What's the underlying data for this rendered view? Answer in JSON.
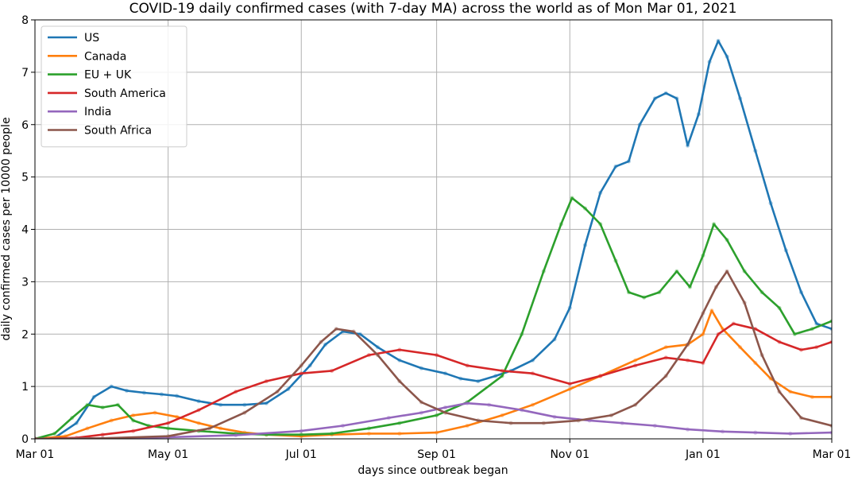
{
  "chart_data": {
    "type": "line",
    "title": "COVID-19 daily confirmed cases (with 7-day MA) across the world as of Mon Mar 01, 2021",
    "xlabel": "days since outbreak began",
    "ylabel": "daily confirmed cases per 10000 people",
    "x_ticks": [
      "Mar 01",
      "May 01",
      "Jul 01",
      "Sep 01",
      "Nov 01",
      "Jan 01",
      "Mar 01"
    ],
    "x_tick_dates": [
      "2020-03-01",
      "2020-05-01",
      "2020-07-01",
      "2020-09-01",
      "2020-11-01",
      "2021-01-01",
      "2021-03-01"
    ],
    "xlim": [
      "2020-03-01",
      "2021-03-01"
    ],
    "ylim": [
      0,
      8
    ],
    "y_ticks": [
      0,
      1,
      2,
      3,
      4,
      5,
      6,
      7,
      8
    ],
    "grid": true,
    "legend_position": "top-left",
    "series": [
      {
        "name": "US",
        "color": "#1f77b4",
        "dates": [
          "2020-03-01",
          "2020-03-10",
          "2020-03-20",
          "2020-03-28",
          "2020-04-05",
          "2020-04-12",
          "2020-04-20",
          "2020-04-28",
          "2020-05-05",
          "2020-05-15",
          "2020-05-25",
          "2020-06-05",
          "2020-06-15",
          "2020-06-25",
          "2020-07-05",
          "2020-07-12",
          "2020-07-20",
          "2020-07-28",
          "2020-08-05",
          "2020-08-15",
          "2020-08-25",
          "2020-09-05",
          "2020-09-12",
          "2020-09-20",
          "2020-09-28",
          "2020-10-05",
          "2020-10-15",
          "2020-10-25",
          "2020-11-01",
          "2020-11-08",
          "2020-11-15",
          "2020-11-22",
          "2020-11-28",
          "2020-12-03",
          "2020-12-10",
          "2020-12-15",
          "2020-12-20",
          "2020-12-25",
          "2020-12-30",
          "2021-01-04",
          "2021-01-08",
          "2021-01-12",
          "2021-01-18",
          "2021-01-25",
          "2021-02-01",
          "2021-02-08",
          "2021-02-15",
          "2021-02-22",
          "2021-03-01"
        ],
        "values": [
          0.0,
          0.02,
          0.3,
          0.8,
          1.0,
          0.92,
          0.88,
          0.85,
          0.82,
          0.72,
          0.65,
          0.65,
          0.68,
          0.95,
          1.4,
          1.8,
          2.05,
          2.0,
          1.75,
          1.5,
          1.35,
          1.25,
          1.15,
          1.1,
          1.2,
          1.3,
          1.5,
          1.9,
          2.5,
          3.7,
          4.7,
          5.2,
          5.3,
          6.0,
          6.5,
          6.6,
          6.5,
          5.6,
          6.2,
          7.2,
          7.6,
          7.3,
          6.5,
          5.5,
          4.5,
          3.6,
          2.8,
          2.2,
          2.1
        ]
      },
      {
        "name": "Canada",
        "color": "#ff7f0e",
        "dates": [
          "2020-03-01",
          "2020-03-15",
          "2020-03-25",
          "2020-04-05",
          "2020-04-15",
          "2020-04-25",
          "2020-05-05",
          "2020-05-15",
          "2020-05-25",
          "2020-06-05",
          "2020-06-15",
          "2020-07-01",
          "2020-07-15",
          "2020-08-01",
          "2020-08-15",
          "2020-09-01",
          "2020-09-15",
          "2020-10-01",
          "2020-10-15",
          "2020-11-01",
          "2020-11-15",
          "2020-12-01",
          "2020-12-15",
          "2020-12-25",
          "2021-01-01",
          "2021-01-05",
          "2021-01-10",
          "2021-01-18",
          "2021-01-25",
          "2021-02-01",
          "2021-02-10",
          "2021-02-20",
          "2021-03-01"
        ],
        "values": [
          0.0,
          0.05,
          0.2,
          0.35,
          0.45,
          0.5,
          0.42,
          0.3,
          0.2,
          0.12,
          0.08,
          0.05,
          0.08,
          0.1,
          0.1,
          0.12,
          0.25,
          0.45,
          0.65,
          0.95,
          1.2,
          1.5,
          1.75,
          1.8,
          2.0,
          2.45,
          2.1,
          1.75,
          1.45,
          1.15,
          0.9,
          0.8,
          0.8
        ]
      },
      {
        "name": "EU + UK",
        "color": "#2ca02c",
        "dates": [
          "2020-03-01",
          "2020-03-10",
          "2020-03-18",
          "2020-03-25",
          "2020-04-01",
          "2020-04-08",
          "2020-04-15",
          "2020-04-22",
          "2020-05-01",
          "2020-05-15",
          "2020-06-01",
          "2020-06-15",
          "2020-07-01",
          "2020-07-15",
          "2020-08-01",
          "2020-08-15",
          "2020-09-01",
          "2020-09-15",
          "2020-10-01",
          "2020-10-10",
          "2020-10-20",
          "2020-10-28",
          "2020-11-02",
          "2020-11-08",
          "2020-11-15",
          "2020-11-22",
          "2020-11-28",
          "2020-12-05",
          "2020-12-12",
          "2020-12-20",
          "2020-12-26",
          "2021-01-01",
          "2021-01-06",
          "2021-01-12",
          "2021-01-20",
          "2021-01-28",
          "2021-02-05",
          "2021-02-12",
          "2021-02-20",
          "2021-03-01"
        ],
        "values": [
          0.0,
          0.1,
          0.4,
          0.65,
          0.6,
          0.65,
          0.35,
          0.25,
          0.2,
          0.15,
          0.1,
          0.08,
          0.08,
          0.1,
          0.2,
          0.3,
          0.45,
          0.7,
          1.2,
          2.0,
          3.2,
          4.1,
          4.6,
          4.4,
          4.1,
          3.4,
          2.8,
          2.7,
          2.8,
          3.2,
          2.9,
          3.5,
          4.1,
          3.8,
          3.2,
          2.8,
          2.5,
          2.0,
          2.1,
          2.25
        ]
      },
      {
        "name": "South America",
        "color": "#d62728",
        "dates": [
          "2020-03-01",
          "2020-03-20",
          "2020-04-01",
          "2020-04-15",
          "2020-05-01",
          "2020-05-15",
          "2020-06-01",
          "2020-06-15",
          "2020-07-01",
          "2020-07-15",
          "2020-08-01",
          "2020-08-15",
          "2020-09-01",
          "2020-09-15",
          "2020-10-01",
          "2020-10-15",
          "2020-11-01",
          "2020-11-15",
          "2020-12-01",
          "2020-12-15",
          "2020-12-25",
          "2021-01-01",
          "2021-01-08",
          "2021-01-15",
          "2021-01-25",
          "2021-02-05",
          "2021-02-15",
          "2021-02-22",
          "2021-03-01"
        ],
        "values": [
          0.0,
          0.02,
          0.08,
          0.15,
          0.3,
          0.55,
          0.9,
          1.1,
          1.25,
          1.3,
          1.6,
          1.7,
          1.6,
          1.4,
          1.3,
          1.25,
          1.05,
          1.2,
          1.4,
          1.55,
          1.5,
          1.45,
          2.0,
          2.2,
          2.1,
          1.85,
          1.7,
          1.75,
          1.85
        ]
      },
      {
        "name": "India",
        "color": "#9467bd",
        "dates": [
          "2020-03-01",
          "2020-04-01",
          "2020-05-01",
          "2020-06-01",
          "2020-07-01",
          "2020-07-20",
          "2020-08-10",
          "2020-08-25",
          "2020-09-05",
          "2020-09-15",
          "2020-09-25",
          "2020-10-10",
          "2020-10-25",
          "2020-11-10",
          "2020-11-25",
          "2020-12-10",
          "2020-12-25",
          "2021-01-10",
          "2021-01-25",
          "2021-02-10",
          "2021-03-01"
        ],
        "values": [
          0.0,
          0.01,
          0.03,
          0.07,
          0.15,
          0.25,
          0.4,
          0.5,
          0.6,
          0.68,
          0.65,
          0.55,
          0.42,
          0.35,
          0.3,
          0.25,
          0.18,
          0.14,
          0.12,
          0.1,
          0.12
        ]
      },
      {
        "name": "South Africa",
        "color": "#8c564b",
        "dates": [
          "2020-03-01",
          "2020-04-01",
          "2020-05-01",
          "2020-05-20",
          "2020-06-05",
          "2020-06-20",
          "2020-07-01",
          "2020-07-10",
          "2020-07-17",
          "2020-07-25",
          "2020-08-05",
          "2020-08-15",
          "2020-08-25",
          "2020-09-05",
          "2020-09-20",
          "2020-10-05",
          "2020-10-20",
          "2020-11-05",
          "2020-11-20",
          "2020-12-01",
          "2020-12-15",
          "2020-12-25",
          "2021-01-01",
          "2021-01-07",
          "2021-01-12",
          "2021-01-20",
          "2021-01-28",
          "2021-02-05",
          "2021-02-15",
          "2021-03-01"
        ],
        "values": [
          0.0,
          0.01,
          0.05,
          0.2,
          0.5,
          0.9,
          1.4,
          1.85,
          2.1,
          2.05,
          1.6,
          1.1,
          0.7,
          0.5,
          0.35,
          0.3,
          0.3,
          0.35,
          0.45,
          0.65,
          1.2,
          1.8,
          2.4,
          2.9,
          3.2,
          2.6,
          1.6,
          0.9,
          0.4,
          0.25
        ]
      }
    ]
  }
}
